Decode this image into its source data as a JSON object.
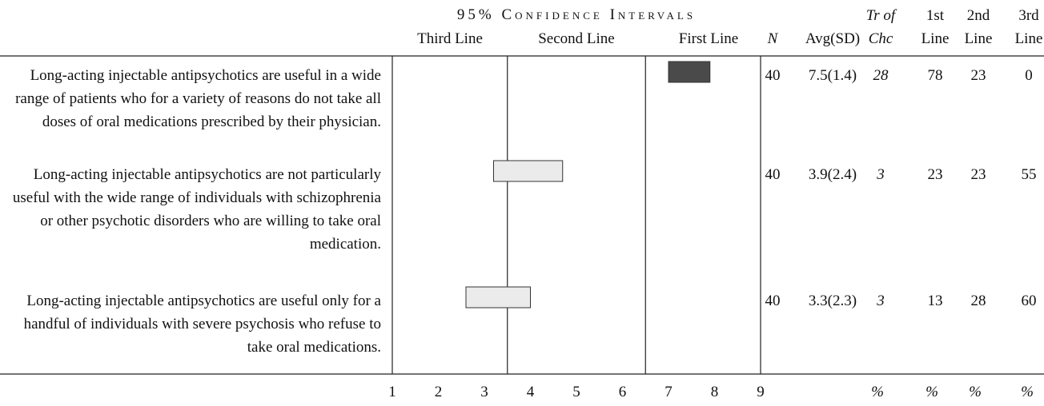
{
  "header": {
    "title": "95% Confidence Intervals",
    "zones": [
      "Third Line",
      "Second Line",
      "First Line"
    ],
    "columns": {
      "n": "N",
      "avg": "Avg(SD)",
      "tr": "Tr of Chc",
      "first": "1st Line",
      "second": "2nd Line",
      "third": "3rd Line"
    }
  },
  "scale": {
    "lim": [
      1,
      9
    ],
    "ticks": [
      1,
      2,
      3,
      4,
      5,
      6,
      7,
      8,
      9
    ],
    "dividers": [
      3.5,
      6.5
    ]
  },
  "rows": [
    {
      "statement": "Long-acting injectable antipsychotics are useful in a wide range of patients who for a variety of reasons do not take all doses of oral medications prescribed by their physician.",
      "ci": [
        7.0,
        7.9
      ],
      "color": "#4a4a4a",
      "n": 40,
      "avg": "7.5(1.4)",
      "tr": 28,
      "first": 78,
      "second": 23,
      "third": 0
    },
    {
      "statement": "Long-acting injectable antipsychotics are not particularly useful with the wide range of individuals with schizophrenia or other psychotic disorders who are willing to take oral medication.",
      "ci": [
        3.2,
        4.7
      ],
      "color": "#ebebeb",
      "n": 40,
      "avg": "3.9(2.4)",
      "tr": 3,
      "first": 23,
      "second": 23,
      "third": 55
    },
    {
      "statement": "Long-acting injectable antipsychotics are useful only for a handful of individuals with severe psychosis who refuse to take oral medications.",
      "ci": [
        2.6,
        4.0
      ],
      "color": "#ebebeb",
      "n": 40,
      "avg": "3.3(2.3)",
      "tr": 3,
      "first": 13,
      "second": 28,
      "third": 60
    }
  ],
  "units": {
    "tr": "%",
    "first": "%",
    "second": "%",
    "third": "%"
  }
}
